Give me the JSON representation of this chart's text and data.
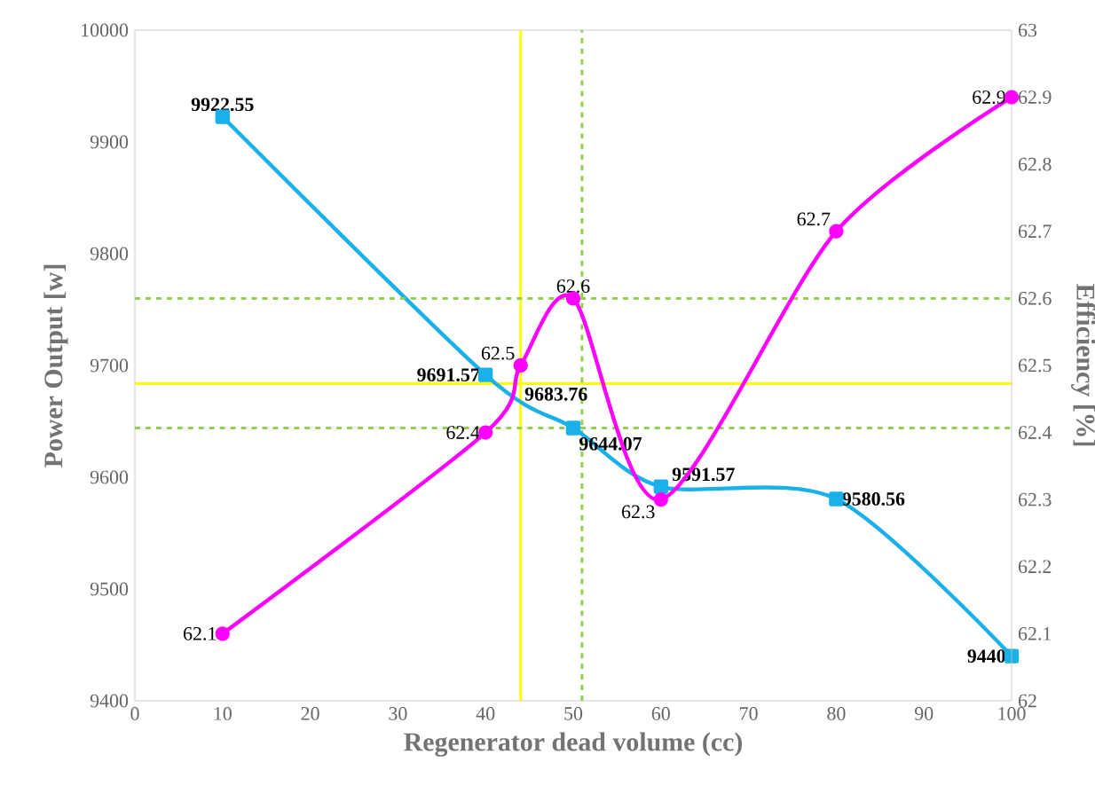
{
  "chart_data": {
    "type": "line",
    "xlabel": "Regenerator dead volume (cc)",
    "ylabel": "Power Output [w]",
    "y2label": "Efficiency [%]",
    "xlim": [
      0,
      100
    ],
    "xticks": [
      0,
      10,
      20,
      30,
      40,
      50,
      60,
      70,
      80,
      90,
      100
    ],
    "ylim": [
      9400,
      10000
    ],
    "yticks": [
      9400,
      9500,
      9600,
      9700,
      9800,
      9900,
      10000
    ],
    "y2lim": [
      62,
      63
    ],
    "y2ticks": [
      62,
      62.1,
      62.2,
      62.3,
      62.4,
      62.5,
      62.6,
      62.7,
      62.8,
      62.9,
      63
    ],
    "grid": false,
    "series": [
      {
        "color": "#1ab0e8",
        "marker": "square",
        "x": [
          10,
          40,
          50,
          60,
          80,
          100
        ],
        "values": [
          9922.55,
          9691.57,
          9644.07,
          9591.57,
          9580.56,
          9440
        ],
        "value_labels": [
          "9922.55",
          "9691.57",
          "9644.07",
          "9591.57",
          "9580.56",
          "9440"
        ]
      },
      {
        "color": "#ff00ff",
        "marker": "circle",
        "axis": "y2",
        "x": [
          10,
          40,
          44,
          50,
          60,
          80,
          100
        ],
        "values": [
          62.1,
          62.4,
          62.5,
          62.6,
          62.3,
          62.7,
          62.9
        ],
        "value_labels": [
          "62.1",
          "62.4",
          "62.5",
          "62.6",
          "62.3",
          "62.7",
          "62.9"
        ]
      }
    ],
    "ref_lines": [
      {
        "axis": "y",
        "value": 9683.76,
        "color": "#ffff00",
        "line_style": "solid"
      },
      {
        "axis": "x",
        "value": 44,
        "color": "#ffff00",
        "line_style": "solid"
      },
      {
        "axis": "y",
        "value": 9644.07,
        "color": "#92d050",
        "line_style": "dashed"
      },
      {
        "axis": "x",
        "value": 51,
        "color": "#92d050",
        "line_style": "dashed"
      },
      {
        "axis": "y2",
        "value": 62.6,
        "color": "#92d050",
        "line_style": "dashed"
      }
    ],
    "annotations": [
      {
        "text": "9683.76",
        "x": 44,
        "y": 9683.76
      }
    ]
  }
}
